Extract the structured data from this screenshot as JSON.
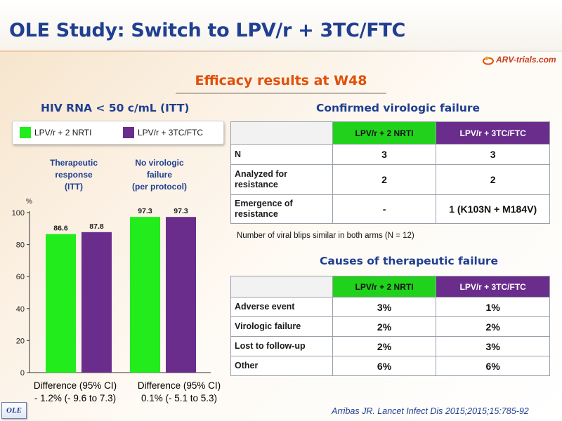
{
  "slide": {
    "title": "OLE Study: Switch to LPV/r + 3TC/FTC",
    "logo_text": "ARV-trials.com",
    "subtitle": "Efficacy results at W48",
    "badge": "OLE",
    "citation": "Arribas JR. Lancet Infect Dis 2015;2015;15:785-92"
  },
  "colors": {
    "arm1": "#22ec1c",
    "arm2": "#6b2d8c",
    "title": "#1f3f91",
    "accent": "#e0500a"
  },
  "left_panel": {
    "heading": "HIV RNA < 50 c/mL (ITT)",
    "legend": [
      "LPV/r + 2 NRTI",
      "LPV/r + 3TC/FTC"
    ],
    "y_unit": "%",
    "groups": [
      {
        "label_lines": [
          "Therapeutic",
          "response",
          "(ITT)"
        ],
        "difference_lines": [
          "Difference (95% CI)",
          "- 1.2% (- 9.6 to 7.3)"
        ]
      },
      {
        "label_lines": [
          "No virologic",
          "failure",
          "(per protocol)"
        ],
        "difference_lines": [
          "Difference (95% CI)",
          "0.1% (- 5.1 to 5.3)"
        ]
      }
    ]
  },
  "chart_data": {
    "type": "bar",
    "categories": [
      "Therapeutic response (ITT)",
      "No virologic failure (per protocol)"
    ],
    "series": [
      {
        "name": "LPV/r + 2 NRTI",
        "values": [
          86.6,
          97.3
        ]
      },
      {
        "name": "LPV/r + 3TC/FTC",
        "values": [
          87.8,
          97.3
        ]
      }
    ],
    "ylabel": "%",
    "ylim": [
      0,
      100
    ],
    "yticks": [
      0,
      20,
      40,
      60,
      80,
      100
    ],
    "data_labels": [
      "86.6",
      "87.8",
      "97.3",
      "97.3"
    ],
    "grid": false,
    "legend": "top"
  },
  "virologic_failure": {
    "heading": "Confirmed virologic failure",
    "columns": [
      "LPV/r + 2 NRTI",
      "LPV/r + 3TC/FTC"
    ],
    "rows": [
      {
        "label_lines": [
          "N"
        ],
        "values": [
          "3",
          "3"
        ]
      },
      {
        "label_lines": [
          "Analyzed for",
          "resistance"
        ],
        "values": [
          "2",
          "2"
        ]
      },
      {
        "label_lines": [
          "Emergence of",
          "resistance"
        ],
        "values": [
          "-",
          "1 (K103N + M184V)"
        ]
      }
    ],
    "note": "Number of viral blips similar in both arms (N = 12)"
  },
  "therapeutic_failure": {
    "heading": "Causes of therapeutic failure",
    "columns": [
      "LPV/r + 2 NRTI",
      "LPV/r + 3TC/FTC"
    ],
    "rows": [
      {
        "label": "Adverse event",
        "values": [
          "3%",
          "1%"
        ]
      },
      {
        "label": "Virologic failure",
        "values": [
          "2%",
          "2%"
        ]
      },
      {
        "label": "Lost to follow-up",
        "values": [
          "2%",
          "3%"
        ]
      },
      {
        "label": "Other",
        "values": [
          "6%",
          "6%"
        ]
      }
    ]
  }
}
